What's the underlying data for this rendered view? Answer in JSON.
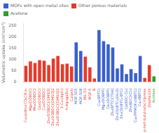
{
  "chart_data": {
    "type": "bar",
    "categories": [
      "Cu₂(ade)₂(CO₂CH₃)₂",
      "Mg₂(DOBDC)",
      "Mn₂(DOBDC)",
      "Co₂(DOBDC)",
      "Cu₂(DOBDC)",
      "Zn₂(DOBDC)[DMSO]",
      "Zn₂(DOBDC)[DMSO]2",
      "Zn₂(DOBDC)[DMSO]3",
      "1-Cu₂(bptc)",
      "h-Ag₂(gallic)",
      "Cu(pnt)",
      "MOF-505",
      "MOF-508",
      "MIL-53",
      "MOF-5",
      "B",
      "Cu₂(BPTC)",
      "Mg₂(DOBPF)",
      "Co₂(DOBPF)",
      "Zn₂(BTTC)[TDA]",
      "Zn₂(O)(BTC₂)(H₂O)",
      "Zn₂(O)(BTC₂-BTC)",
      "Co(BDC-Cl₂)",
      "Zn₂(BDC)(Cl₂)",
      "Cu₂(PPMOF₂)(BBTC)",
      "Cu₂(BBTC)",
      "p-tert-butylcalix[4]arene",
      "Zeolite13X",
      "Acetone"
    ],
    "series": [
      {
        "name": "MOFs with open metal sites",
        "color": "#3a5fcd",
        "values": [
          null,
          null,
          null,
          null,
          null,
          null,
          null,
          null,
          null,
          null,
          null,
          175,
          137,
          null,
          null,
          null,
          230,
          181,
          167,
          153,
          60,
          78,
          35,
          57,
          39,
          115,
          null,
          null,
          null
        ]
      },
      {
        "name": "Other porous materials",
        "color": "#e8392a",
        "values": [
          72,
          91,
          84,
          97,
          94,
          75,
          104,
          115,
          79,
          81,
          69,
          null,
          null,
          112,
          65,
          16,
          null,
          null,
          null,
          null,
          null,
          null,
          null,
          null,
          null,
          null,
          18,
          75,
          null
        ]
      },
      {
        "name": "Acetone",
        "color": "#2ca02c",
        "values": [
          null,
          null,
          null,
          null,
          null,
          null,
          null,
          null,
          null,
          null,
          null,
          null,
          null,
          null,
          null,
          null,
          null,
          null,
          null,
          null,
          null,
          null,
          null,
          null,
          null,
          null,
          null,
          null,
          25
        ]
      }
    ],
    "ylabel": "Volumetric uptake (cm³/cm³)",
    "ylim": [
      0,
      260
    ],
    "yticks": [
      0,
      50,
      100,
      150,
      200,
      250
    ],
    "grid": false,
    "legend": "upper left"
  }
}
